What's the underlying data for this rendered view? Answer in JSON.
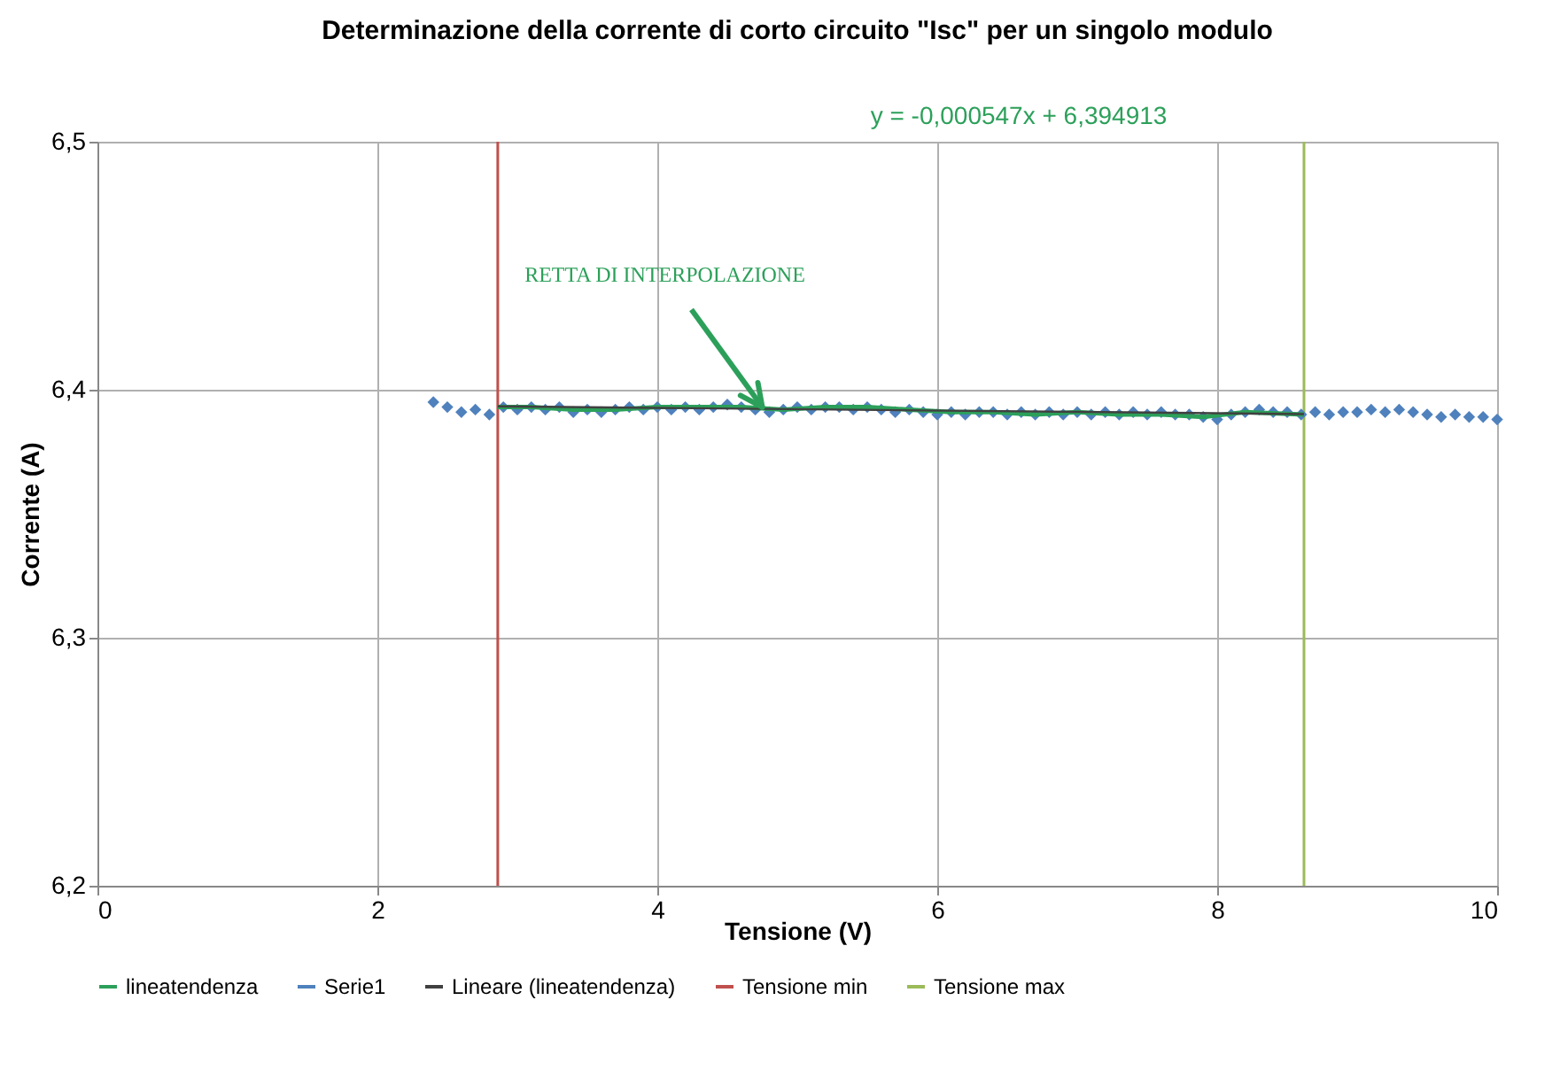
{
  "chart_data": {
    "type": "scatter",
    "title": "Determinazione della corrente di corto circuito \"Isc\" per un singolo modulo",
    "xlabel": "Tensione (V)",
    "ylabel": "Corrente (A)",
    "xlim": [
      0,
      10
    ],
    "xticks": [
      0,
      2,
      4,
      6,
      8,
      10
    ],
    "ylim": [
      6.2,
      6.5
    ],
    "yticks": [
      {
        "value": 6.2,
        "label": "6,2"
      },
      {
        "value": 6.3,
        "label": "6,3"
      },
      {
        "value": 6.4,
        "label": "6,4"
      },
      {
        "value": 6.5,
        "label": "6,5"
      }
    ],
    "grid": true,
    "legend": "bottom",
    "series": [
      {
        "name": "lineatendenza",
        "type": "line",
        "color": "#2ca05a",
        "x": [
          2.86,
          3.1,
          3.4,
          3.7,
          4.0,
          4.3,
          4.6,
          4.9,
          5.2,
          5.5,
          5.8,
          6.1,
          6.4,
          6.7,
          7.0,
          7.3,
          7.6,
          7.9,
          8.2,
          8.62
        ],
        "values": [
          6.393,
          6.393,
          6.392,
          6.392,
          6.393,
          6.393,
          6.393,
          6.392,
          6.393,
          6.393,
          6.392,
          6.391,
          6.391,
          6.39,
          6.391,
          6.39,
          6.39,
          6.389,
          6.391,
          6.39
        ]
      },
      {
        "name": "Serie1",
        "marker": "diamond",
        "color": "#4f81bd",
        "x": [
          2.4,
          2.5,
          2.6,
          2.7,
          2.8,
          2.9,
          3.0,
          3.1,
          3.2,
          3.3,
          3.4,
          3.5,
          3.6,
          3.7,
          3.8,
          3.9,
          4.0,
          4.1,
          4.2,
          4.3,
          4.4,
          4.5,
          4.6,
          4.7,
          4.8,
          4.9,
          5.0,
          5.1,
          5.2,
          5.3,
          5.4,
          5.5,
          5.6,
          5.7,
          5.8,
          5.9,
          6.0,
          6.1,
          6.2,
          6.3,
          6.4,
          6.5,
          6.6,
          6.7,
          6.8,
          6.9,
          7.0,
          7.1,
          7.2,
          7.3,
          7.4,
          7.5,
          7.6,
          7.7,
          7.8,
          7.9,
          8.0,
          8.1,
          8.2,
          8.3,
          8.4,
          8.5,
          8.6,
          8.7,
          8.8,
          8.9,
          9.0,
          9.1,
          9.2,
          9.3,
          9.4,
          9.5,
          9.6,
          9.7,
          9.8,
          9.9,
          10.0
        ],
        "values": [
          6.395,
          6.393,
          6.391,
          6.392,
          6.39,
          6.393,
          6.392,
          6.393,
          6.392,
          6.393,
          6.391,
          6.392,
          6.391,
          6.392,
          6.393,
          6.392,
          6.393,
          6.392,
          6.393,
          6.392,
          6.393,
          6.394,
          6.393,
          6.392,
          6.391,
          6.392,
          6.393,
          6.392,
          6.393,
          6.393,
          6.392,
          6.393,
          6.392,
          6.391,
          6.392,
          6.391,
          6.39,
          6.391,
          6.39,
          6.391,
          6.391,
          6.39,
          6.391,
          6.39,
          6.391,
          6.39,
          6.391,
          6.39,
          6.391,
          6.39,
          6.391,
          6.39,
          6.391,
          6.39,
          6.39,
          6.389,
          6.388,
          6.39,
          6.391,
          6.392,
          6.391,
          6.391,
          6.39,
          6.391,
          6.39,
          6.391,
          6.391,
          6.392,
          6.391,
          6.392,
          6.391,
          6.39,
          6.389,
          6.39,
          6.389,
          6.389,
          6.388
        ]
      },
      {
        "name": "Lineare (lineatendenza)",
        "type": "line",
        "color": "#404040",
        "x": [
          2.86,
          8.62
        ],
        "values": [
          6.3933,
          6.3902
        ]
      }
    ],
    "ref_lines": [
      {
        "axis": "x",
        "value": 2.86,
        "label": "Tensione min",
        "color": "#c0504d"
      },
      {
        "axis": "x",
        "value": 8.62,
        "label": "Tensione max",
        "color": "#9bbb59"
      }
    ],
    "annotations": [
      "y = -0,000547x + 6,394913",
      {
        "text": "RETTA DI INTERPOLAZIONE",
        "x": 4.75,
        "y": 6.393
      }
    ]
  }
}
